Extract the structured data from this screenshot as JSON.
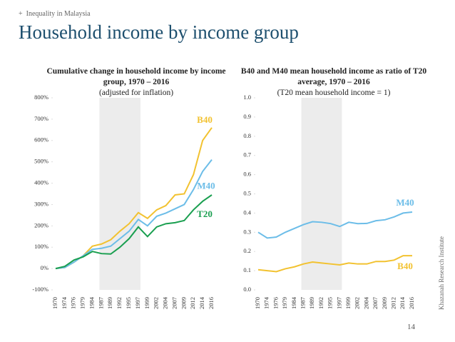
{
  "header": {
    "kicker": "Inequality in Malaysia",
    "title": "Household income by income group"
  },
  "footer": {
    "page": "14",
    "source": "Khazanah Research Institute"
  },
  "chart_data": [
    {
      "type": "line",
      "title": "Cumulative change in household income by income group, 1970 – 2016",
      "subtitle": "(adjusted for inflation)",
      "categories": [
        "1970",
        "1974",
        "1976",
        "1979",
        "1984",
        "1987",
        "1989",
        "1992",
        "1995",
        "1997",
        "1999",
        "2002",
        "2004",
        "2007",
        "2009",
        "2012",
        "2014",
        "2016"
      ],
      "shaded_range": [
        1987,
        1997
      ],
      "ylim": [
        -100,
        800
      ],
      "yticks": [
        {
          "value": -100,
          "label": "-100%"
        },
        {
          "value": 0,
          "label": "0%"
        },
        {
          "value": 100,
          "label": "100%"
        },
        {
          "value": 200,
          "label": "200%"
        },
        {
          "value": 300,
          "label": "300%"
        },
        {
          "value": 400,
          "label": "400%"
        },
        {
          "value": 500,
          "label": "500%"
        },
        {
          "value": 600,
          "label": "600%"
        },
        {
          "value": 700,
          "label": "700%"
        },
        {
          "value": 800,
          "label": "800%"
        }
      ],
      "grid": false,
      "series": [
        {
          "name": "B40",
          "color": "#f2c230",
          "values": [
            0,
            5,
            30,
            60,
            105,
            115,
            135,
            175,
            210,
            262,
            235,
            275,
            295,
            345,
            350,
            440,
            600,
            660
          ]
        },
        {
          "name": "M40",
          "color": "#6cbde8",
          "values": [
            0,
            5,
            30,
            60,
            90,
            95,
            105,
            140,
            175,
            230,
            200,
            245,
            260,
            280,
            300,
            370,
            455,
            510
          ]
        },
        {
          "name": "T20",
          "color": "#1a9f50",
          "values": [
            0,
            10,
            40,
            55,
            80,
            70,
            68,
            100,
            140,
            195,
            150,
            195,
            210,
            215,
            225,
            275,
            315,
            345
          ]
        }
      ]
    },
    {
      "type": "line",
      "title": "B40 and M40 mean household income as ratio of T20 average, 1970 – 2016",
      "subtitle": "(T20 mean household income = 1)",
      "categories": [
        "1970",
        "1974",
        "1976",
        "1979",
        "1984",
        "1987",
        "1989",
        "1992",
        "1995",
        "1997",
        "1999",
        "2002",
        "2004",
        "2007",
        "2009",
        "2012",
        "2014",
        "2016"
      ],
      "shaded_range": [
        1987,
        1997
      ],
      "ylim": [
        0,
        1
      ],
      "yticks": [
        {
          "value": 0,
          "label": "0.0"
        },
        0.1,
        0.2,
        0.3,
        0.4,
        0.5,
        0.6,
        0.7,
        0.8,
        0.9,
        {
          "value": 1,
          "label": "1.0"
        }
      ],
      "grid": false,
      "series": [
        {
          "name": "M40",
          "color": "#6cbde8",
          "values": [
            0.3,
            0.27,
            0.275,
            0.3,
            0.32,
            0.34,
            0.355,
            0.352,
            0.345,
            0.33,
            0.352,
            0.345,
            0.346,
            0.36,
            0.365,
            0.38,
            0.4,
            0.405
          ]
        },
        {
          "name": "B40",
          "color": "#f2c230",
          "values": [
            0.105,
            0.1,
            0.095,
            0.11,
            0.12,
            0.135,
            0.145,
            0.14,
            0.135,
            0.13,
            0.14,
            0.135,
            0.135,
            0.148,
            0.148,
            0.155,
            0.178,
            0.178
          ]
        }
      ]
    }
  ]
}
